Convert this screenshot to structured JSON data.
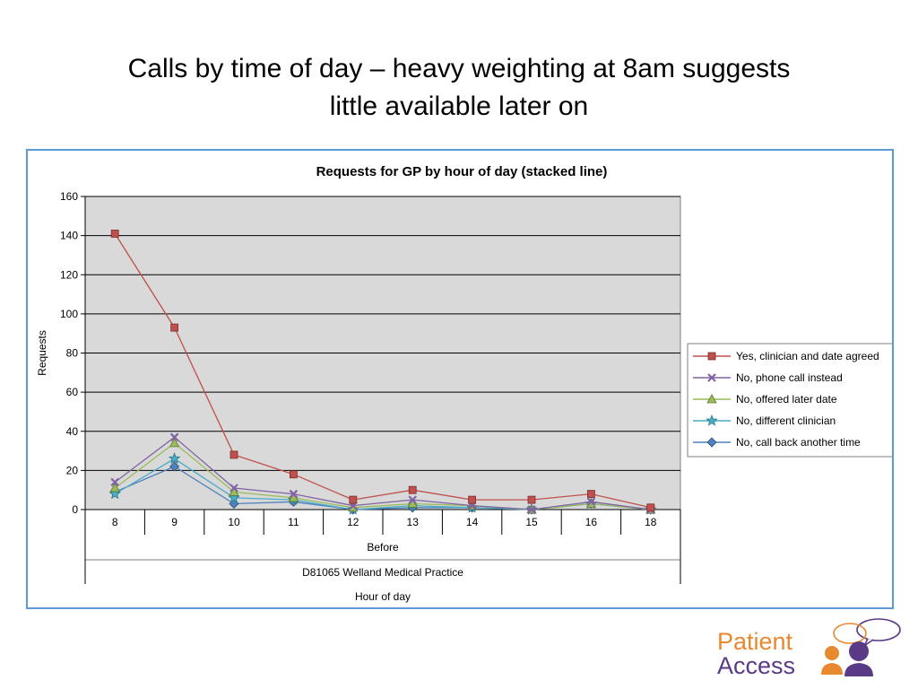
{
  "slide": {
    "title_line1": "Calls by time of day – heavy weighting at 8am suggests",
    "title_line2": "little available later on"
  },
  "logo": {
    "word1": "Patient",
    "word2": "Access"
  },
  "colors": {
    "frame": "#5b9bd5",
    "plot_bg": "#d9d9d9",
    "logo_orange": "#e8892f",
    "logo_purple": "#5a3a86"
  },
  "chart_data": {
    "type": "line",
    "title": "Requests for GP by hour of day (stacked line)",
    "ylabel": "Requests",
    "xlabel": "Hour of day",
    "x_group_label_1": "Before",
    "x_group_label_2": "D81065 Welland Medical Practice",
    "categories": [
      "8",
      "9",
      "10",
      "11",
      "12",
      "13",
      "14",
      "15",
      "16",
      "18"
    ],
    "ylim": [
      0,
      160
    ],
    "yticks": [
      0,
      20,
      40,
      60,
      80,
      100,
      120,
      140,
      160
    ],
    "grid": true,
    "legend_position": "right",
    "series": [
      {
        "name": "Yes, clinician and date agreed",
        "color": "#c0504d",
        "marker": "square",
        "values": [
          141,
          93,
          28,
          18,
          5,
          10,
          5,
          5,
          8,
          1
        ]
      },
      {
        "name": "No, phone call instead",
        "color": "#8064a2",
        "marker": "x",
        "values": [
          14,
          37,
          11,
          8,
          2,
          5,
          2,
          0,
          4,
          0
        ]
      },
      {
        "name": "No, offered later date",
        "color": "#9bbb59",
        "marker": "triangle",
        "values": [
          11,
          34,
          9,
          6,
          1,
          3,
          2,
          0,
          3,
          0
        ]
      },
      {
        "name": "No, different clinician",
        "color": "#4bacc6",
        "marker": "star",
        "values": [
          8,
          26,
          6,
          5,
          0,
          2,
          1,
          0,
          3,
          0
        ]
      },
      {
        "name": "No, call back another time",
        "color": "#4f81bd",
        "marker": "diamond",
        "values": [
          9,
          22,
          3,
          4,
          0,
          1,
          1,
          0,
          3,
          0
        ]
      }
    ]
  }
}
